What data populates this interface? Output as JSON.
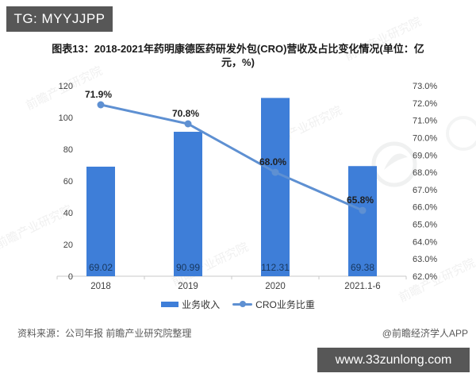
{
  "badge_top": "TG: MYYJJPP",
  "badge_bottom": "www.33zunlong.com",
  "title_lines": [
    "图表13：2018-2021年药明康德医药研发外包(CRO)营收及占比变化情况(单位：亿",
    "元，%)"
  ],
  "footer": {
    "source": "资料来源：公司年报 前瞻产业研究院整理",
    "credit": "@前瞻经济学人APP"
  },
  "watermark": {
    "text": "前瞻产业研究院"
  },
  "colors": {
    "bar": "#3e7ed8",
    "line": "#5e90d2",
    "value_label": "#17375e",
    "pct_label": "#1f1f1f",
    "axis_text": "#404040",
    "axis_line": "#c8c8c8",
    "badge_bg": "#575757",
    "footer_text": "#595959"
  },
  "chart_data": {
    "type": "bar+line",
    "categories": [
      "2018",
      "2019",
      "2020",
      "2021.1-6"
    ],
    "series": [
      {
        "name": "业务收入",
        "type": "bar",
        "axis": "left",
        "values": [
          69.02,
          90.99,
          112.31,
          69.38
        ],
        "labels": [
          "69.02",
          "90.99",
          "112.31",
          "69.38"
        ]
      },
      {
        "name": "CRO业务比重",
        "type": "line",
        "axis": "right",
        "values": [
          71.9,
          70.8,
          68.0,
          65.8
        ],
        "labels": [
          "71.9%",
          "70.8%",
          "68.0%",
          "65.8%"
        ]
      }
    ],
    "left_axis": {
      "min": 0,
      "max": 120,
      "ticks": [
        0,
        20,
        40,
        60,
        80,
        100,
        120
      ]
    },
    "right_axis": {
      "min": 62,
      "max": 73,
      "tick_labels": [
        "62.0%",
        "63.0%",
        "64.0%",
        "65.0%",
        "66.0%",
        "67.0%",
        "68.0%",
        "69.0%",
        "70.0%",
        "71.0%",
        "72.0%",
        "73.0%"
      ]
    },
    "grid": false,
    "legend_position": "bottom"
  }
}
